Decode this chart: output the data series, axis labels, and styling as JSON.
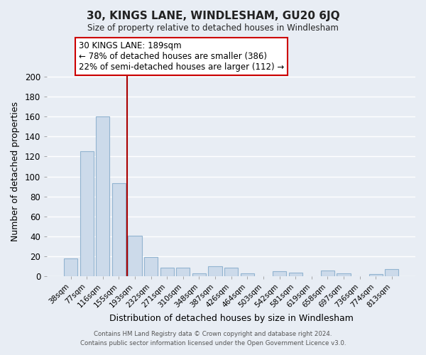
{
  "title": "30, KINGS LANE, WINDLESHAM, GU20 6JQ",
  "subtitle": "Size of property relative to detached houses in Windlesham",
  "xlabel": "Distribution of detached houses by size in Windlesham",
  "ylabel": "Number of detached properties",
  "bar_labels": [
    "38sqm",
    "77sqm",
    "116sqm",
    "155sqm",
    "193sqm",
    "232sqm",
    "271sqm",
    "310sqm",
    "348sqm",
    "387sqm",
    "426sqm",
    "464sqm",
    "503sqm",
    "542sqm",
    "581sqm",
    "619sqm",
    "658sqm",
    "697sqm",
    "736sqm",
    "774sqm",
    "813sqm"
  ],
  "bar_values": [
    18,
    125,
    160,
    93,
    41,
    19,
    9,
    9,
    3,
    10,
    9,
    3,
    0,
    5,
    4,
    0,
    6,
    3,
    0,
    2,
    7
  ],
  "bar_color": "#ccdaea",
  "bar_edge_color": "#92b4d0",
  "background_color": "#e8edf4",
  "grid_color": "#ffffff",
  "vline_color": "#aa0000",
  "ylim": [
    0,
    210
  ],
  "yticks": [
    0,
    20,
    40,
    60,
    80,
    100,
    120,
    140,
    160,
    180,
    200
  ],
  "annotation_title": "30 KINGS LANE: 189sqm",
  "annotation_line1": "← 78% of detached houses are smaller (386)",
  "annotation_line2": "22% of semi-detached houses are larger (112) →",
  "annotation_box_color": "#ffffff",
  "annotation_box_edge": "#cc0000",
  "footer_line1": "Contains HM Land Registry data © Crown copyright and database right 2024.",
  "footer_line2": "Contains public sector information licensed under the Open Government Licence v3.0."
}
